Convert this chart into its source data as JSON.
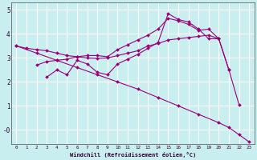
{
  "xlabel": "Windchill (Refroidissement éolien,°C)",
  "background_color": "#c9eef0",
  "grid_color": "#aadddd",
  "line_color": "#990077",
  "xlim": [
    -0.5,
    23.5
  ],
  "ylim": [
    -0.6,
    5.3
  ],
  "yticks": [
    0,
    1,
    2,
    3,
    4,
    5
  ],
  "ytick_labels": [
    "-0",
    "1",
    "2",
    "3",
    "4",
    "5"
  ],
  "xticks": [
    0,
    1,
    2,
    3,
    4,
    5,
    6,
    7,
    8,
    9,
    10,
    11,
    12,
    13,
    14,
    15,
    16,
    17,
    18,
    19,
    20,
    21,
    22,
    23
  ],
  "lines": [
    {
      "x": [
        0,
        1,
        2,
        3,
        4,
        5,
        6,
        7,
        8,
        9,
        10,
        11,
        12,
        13,
        14,
        15,
        16,
        17,
        18,
        19,
        20,
        21
      ],
      "y": [
        3.5,
        3.4,
        3.35,
        3.3,
        3.2,
        3.1,
        3.05,
        3.0,
        2.98,
        3.0,
        3.1,
        3.2,
        3.3,
        3.5,
        3.6,
        3.75,
        3.8,
        3.85,
        3.9,
        3.95,
        3.8,
        2.5
      ]
    },
    {
      "x": [
        2,
        3,
        4,
        5,
        6,
        7,
        8,
        9,
        10,
        11,
        12,
        13,
        14,
        15,
        16,
        17,
        18,
        19,
        20,
        21,
        22
      ],
      "y": [
        2.7,
        2.85,
        2.9,
        2.95,
        3.05,
        3.1,
        3.1,
        3.05,
        3.35,
        3.55,
        3.75,
        3.95,
        4.2,
        4.65,
        4.55,
        4.4,
        4.15,
        4.2,
        3.8,
        2.5,
        1.05
      ]
    },
    {
      "x": [
        3,
        4,
        5,
        6,
        7,
        8,
        9,
        10,
        11,
        12,
        13,
        14,
        15,
        16,
        17,
        18,
        19,
        20
      ],
      "y": [
        2.2,
        2.5,
        2.3,
        2.9,
        2.75,
        2.4,
        2.3,
        2.75,
        2.95,
        3.15,
        3.4,
        3.65,
        4.85,
        4.6,
        4.5,
        4.2,
        3.8,
        3.8
      ]
    },
    {
      "x": [
        0,
        2,
        4,
        6,
        8,
        10,
        12,
        14,
        16,
        18,
        20,
        21,
        22,
        23
      ],
      "y": [
        3.5,
        3.2,
        2.9,
        2.6,
        2.3,
        2.0,
        1.7,
        1.35,
        1.0,
        0.65,
        0.3,
        0.1,
        -0.2,
        -0.5
      ]
    }
  ]
}
